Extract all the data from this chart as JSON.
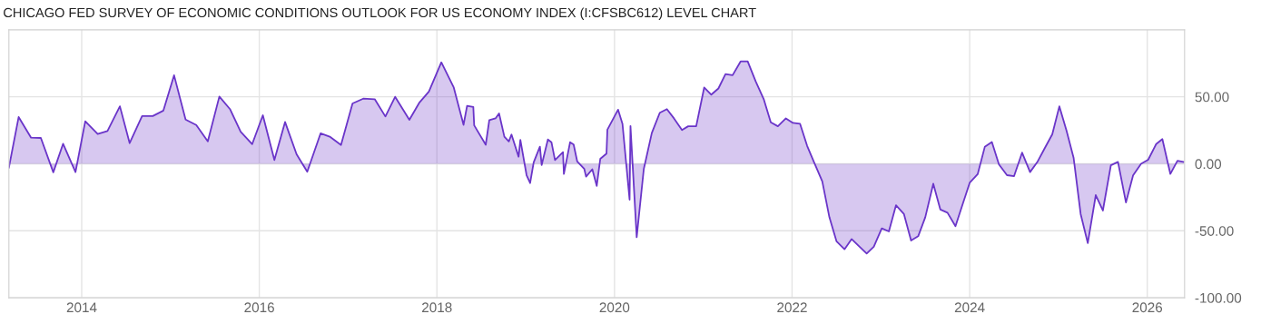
{
  "chart_data": {
    "type": "area",
    "title": "CHICAGO FED SURVEY OF ECONOMIC CONDITIONS OUTLOOK FOR US ECONOMY INDEX (I:CFSBC612) LEVEL CHART",
    "x": [
      2013.18,
      2013.29,
      2013.43,
      2013.54,
      2013.68,
      2013.79,
      2013.93,
      2014.04,
      2014.18,
      2014.29,
      2014.43,
      2014.54,
      2014.68,
      2014.8,
      2014.92,
      2015.04,
      2015.17,
      2015.29,
      2015.42,
      2015.55,
      2015.67,
      2015.79,
      2015.92,
      2016.04,
      2016.17,
      2016.29,
      2016.42,
      2016.54,
      2016.69,
      2016.8,
      2016.92,
      2017.05,
      2017.17,
      2017.3,
      2017.42,
      2017.53,
      2017.69,
      2017.8,
      2017.91,
      2018.05,
      2018.19,
      2018.3,
      2018.34,
      2018.41,
      2018.42,
      2018.55,
      2018.59,
      2018.66,
      2018.7,
      2018.76,
      2018.81,
      2018.84,
      2018.92,
      2018.94,
      2019.01,
      2019.05,
      2019.09,
      2019.16,
      2019.18,
      2019.25,
      2019.29,
      2019.33,
      2019.42,
      2019.43,
      2019.5,
      2019.54,
      2019.58,
      2019.66,
      2019.68,
      2019.75,
      2019.8,
      2019.84,
      2019.91,
      2019.92,
      2020.04,
      2020.09,
      2020.17,
      2020.18,
      2020.25,
      2020.33,
      2020.42,
      2020.51,
      2020.59,
      2020.67,
      2020.76,
      2020.83,
      2020.92,
      2021.01,
      2021.09,
      2021.17,
      2021.25,
      2021.33,
      2021.42,
      2021.5,
      2021.59,
      2021.68,
      2021.76,
      2021.84,
      2021.93,
      2022.01,
      2022.09,
      2022.17,
      2022.25,
      2022.34,
      2022.42,
      2022.5,
      2022.59,
      2022.67,
      2022.76,
      2022.84,
      2022.92,
      2023.01,
      2023.09,
      2023.17,
      2023.26,
      2023.34,
      2023.42,
      2023.5,
      2023.59,
      2023.67,
      2023.75,
      2023.84,
      2023.92,
      2024.0,
      2024.09,
      2024.17,
      2024.25,
      2024.33,
      2024.42,
      2024.5,
      2024.59,
      2024.68,
      2024.76,
      2024.84,
      2024.93,
      2025.01,
      2025.09,
      2025.17,
      2025.25,
      2025.33,
      2025.42,
      2025.5,
      2025.59,
      2025.67,
      2025.76,
      2025.84,
      2025.93,
      2026.01,
      2026.1,
      2026.17,
      2026.26,
      2026.34,
      2026.41
    ],
    "series": [
      {
        "color": "#6a35c9",
        "values": [
          -2.8,
          34.9,
          19.5,
          19.3,
          -6.4,
          14.9,
          -6.2,
          31.7,
          22.2,
          24.5,
          42.9,
          15.4,
          35.6,
          35.6,
          39.7,
          66.1,
          33.0,
          28.9,
          16.7,
          50.2,
          40.8,
          23.9,
          14.7,
          36.2,
          2.8,
          31.2,
          7.1,
          -6.0,
          22.7,
          20.0,
          14.0,
          45.0,
          48.6,
          48.2,
          35.3,
          50.0,
          32.8,
          45.4,
          53.9,
          75.7,
          56.9,
          29.1,
          43.3,
          42.4,
          28.7,
          14.2,
          32.6,
          33.9,
          37.6,
          20.2,
          16.7,
          21.8,
          5.3,
          17.9,
          -8.5,
          -14.4,
          1.1,
          12.8,
          -0.9,
          18.1,
          16.1,
          2.8,
          8.7,
          -7.6,
          16.1,
          14.4,
          1.8,
          -3.9,
          -9.6,
          -4.1,
          -16.5,
          3.7,
          7.6,
          25.5,
          40.4,
          29.8,
          -26.8,
          28.2,
          -54.8,
          -3.9,
          22.9,
          38.1,
          40.8,
          33.9,
          25.2,
          28.0,
          28.0,
          56.9,
          51.6,
          56.2,
          67.0,
          66.1,
          76.4,
          76.4,
          61.5,
          48.4,
          31.0,
          28.0,
          33.9,
          30.5,
          29.8,
          13.3,
          0.7,
          -13.1,
          -39.9,
          -57.8,
          -63.8,
          -56.2,
          -61.9,
          -67.0,
          -61.9,
          -48.2,
          -50.5,
          -31.0,
          -37.6,
          -57.3,
          -54.1,
          -39.9,
          -14.9,
          -34.2,
          -36.5,
          -46.6,
          -30.3,
          -14.2,
          -7.8,
          12.6,
          16.3,
          -0.5,
          -8.5,
          -9.2,
          8.3,
          -6.2,
          1.1,
          11.0,
          22.0,
          42.9,
          24.8,
          4.6,
          -37.6,
          -59.2,
          -23.4,
          -34.9,
          -1.1,
          1.4,
          -28.9,
          -8.7,
          0.0,
          3.0,
          14.7,
          18.4,
          -7.6,
          2.3,
          1.4
        ]
      }
    ],
    "xlim": [
      2013.18,
      2026.42
    ],
    "xticks": [
      2014,
      2016,
      2018,
      2020,
      2022,
      2024,
      2026
    ],
    "ylim": [
      -100,
      100
    ],
    "yticks": [
      {
        "value": -100,
        "label": "-100.00"
      },
      {
        "value": -50,
        "label": "-50.00"
      },
      {
        "value": 0,
        "label": "0.00"
      },
      {
        "value": 50,
        "label": "50.00"
      }
    ],
    "grid": true
  }
}
